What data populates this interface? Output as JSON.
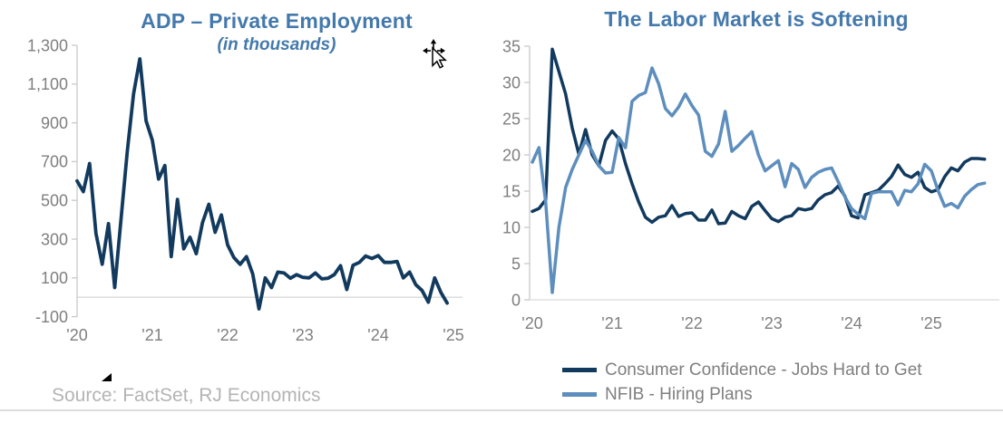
{
  "colors": {
    "title_blue": "#4479AC",
    "navy": "#123A5E",
    "steel_blue": "#5D8EBD",
    "axis_text": "#7F7F7F",
    "axis_line": "#C9C9C9",
    "grid_line": "#D9D9D9",
    "legend_text": "#7F7F7F",
    "source_text": "#B4B4B4",
    "marker_black": "#000000"
  },
  "footer": {
    "source_note": "Source: FactSet, RJ Economics"
  },
  "chart_data": [
    {
      "type": "line",
      "title": "ADP – Private Employment",
      "subtitle": "(in thousands)",
      "x_start": "2020-01",
      "frequency": "monthly",
      "x_tick_labels": [
        "'20",
        "'21",
        "'22",
        "'23",
        "'24",
        "'25"
      ],
      "y_ticks": [
        -100,
        100,
        300,
        500,
        700,
        900,
        1100,
        1300
      ],
      "y_tick_labels": [
        "-100",
        "100",
        "300",
        "500",
        "700",
        "900",
        "1,100",
        "1,300"
      ],
      "ylim": [
        -100,
        1300
      ],
      "grid": "zero-line-only",
      "legend_position": "none",
      "series": [
        {
          "name": "ADP – Private Employment (in thousands)",
          "color_key": "navy",
          "values": [
            600,
            545,
            690,
            330,
            170,
            380,
            50,
            400,
            750,
            1050,
            1230,
            910,
            810,
            610,
            680,
            210,
            505,
            250,
            310,
            225,
            385,
            480,
            335,
            425,
            270,
            205,
            170,
            210,
            120,
            -60,
            100,
            50,
            130,
            125,
            98,
            117,
            103,
            100,
            125,
            95,
            98,
            117,
            163,
            40,
            165,
            180,
            213,
            200,
            215,
            180,
            180,
            185,
            100,
            130,
            65,
            35,
            -25,
            100,
            25,
            -30
          ]
        }
      ]
    },
    {
      "type": "line",
      "title": "The Labor Market is Softening",
      "x_start": "2020-01",
      "frequency": "monthly",
      "x_tick_labels": [
        "'20",
        "'21",
        "'22",
        "'23",
        "'24",
        "'25"
      ],
      "y_ticks": [
        0,
        5,
        10,
        15,
        20,
        25,
        30,
        35
      ],
      "y_tick_labels": [
        "0",
        "5",
        "10",
        "15",
        "20",
        "25",
        "30",
        "35"
      ],
      "ylim": [
        0,
        35
      ],
      "grid": "baseline-only",
      "legend_position": "bottom",
      "series": [
        {
          "name": "Consumer Confidence - Jobs Hard to Get",
          "color_key": "navy",
          "values": [
            12.2,
            12.6,
            13.8,
            34.6,
            31.5,
            28.4,
            23.7,
            20.1,
            23.5,
            20.0,
            18.5,
            22.0,
            23.3,
            22.2,
            18.8,
            16.0,
            13.5,
            11.4,
            10.7,
            11.4,
            11.6,
            13.0,
            11.5,
            11.9,
            12.0,
            11.0,
            11.0,
            12.4,
            10.5,
            10.6,
            12.2,
            11.6,
            11.2,
            12.9,
            13.5,
            12.3,
            11.2,
            10.8,
            11.4,
            11.6,
            12.6,
            12.4,
            12.6,
            13.8,
            14.5,
            14.8,
            15.7,
            14.3,
            11.6,
            11.3,
            14.5,
            14.8,
            15.1,
            16.0,
            17.0,
            18.6,
            17.3,
            16.9,
            17.6,
            15.5,
            14.9,
            15.2,
            17.0,
            18.2,
            17.8,
            19.0,
            19.5,
            19.5,
            19.4
          ]
        },
        {
          "name": "NFIB - Hiring Plans",
          "color_key": "steel_blue",
          "values": [
            19.0,
            21.0,
            13.5,
            1.0,
            10.0,
            15.5,
            18.0,
            20.0,
            22.0,
            20.5,
            18.5,
            17.5,
            17.6,
            22.4,
            21.0,
            27.4,
            28.2,
            28.6,
            32.0,
            29.8,
            26.4,
            25.4,
            26.6,
            28.4,
            26.8,
            25.5,
            20.5,
            19.8,
            21.5,
            26.0,
            20.5,
            21.3,
            22.3,
            23.2,
            20.0,
            17.8,
            18.5,
            19.2,
            15.6,
            18.8,
            18.0,
            15.5,
            16.9,
            17.6,
            18.0,
            18.2,
            16.3,
            14.2,
            12.6,
            11.8,
            11.2,
            14.7,
            14.9,
            14.9,
            14.9,
            13.1,
            15.1,
            14.9,
            16.0,
            18.7,
            17.8,
            15.1,
            12.9,
            13.3,
            12.7,
            14.3,
            15.2,
            15.9,
            16.1
          ]
        }
      ]
    }
  ]
}
